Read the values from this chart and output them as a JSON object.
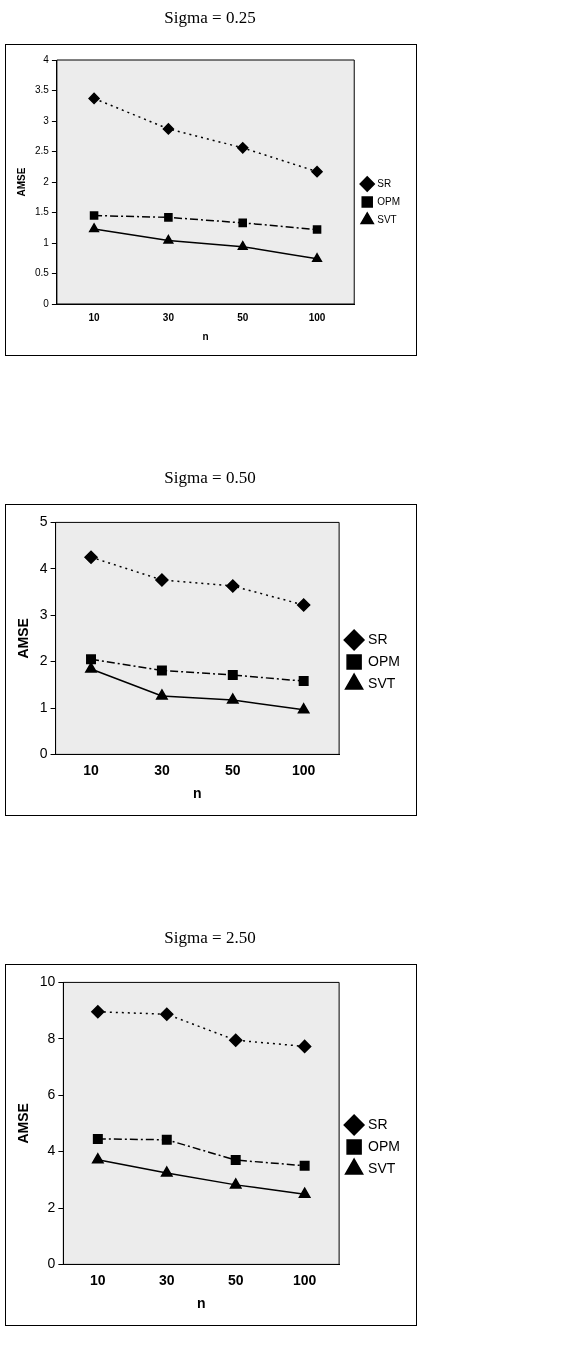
{
  "chart_data": [
    {
      "type": "line",
      "title": "Sigma = 0.25",
      "xlabel": "n",
      "ylabel": "AMSE",
      "categories": [
        "10",
        "30",
        "50",
        "100"
      ],
      "ylim": [
        0,
        4
      ],
      "yticks": [
        0,
        0.5,
        1,
        1.5,
        2,
        2.5,
        3,
        3.5,
        4
      ],
      "grid": false,
      "legend": "right",
      "series": [
        {
          "name": "SR",
          "color": "#000000",
          "marker": "diamond",
          "line_style": "dotted",
          "values": [
            3.37,
            2.87,
            2.56,
            2.17
          ]
        },
        {
          "name": "OPM",
          "color": "#000000",
          "marker": "square",
          "line_style": "dashed",
          "values": [
            1.45,
            1.42,
            1.33,
            1.22
          ]
        },
        {
          "name": "SVT",
          "color": "#000000",
          "marker": "triangle",
          "line_style": "solid",
          "values": [
            1.23,
            1.04,
            0.94,
            0.74
          ]
        }
      ]
    },
    {
      "type": "line",
      "title": "Sigma = 0.50",
      "xlabel": "n",
      "ylabel": "AMSE",
      "categories": [
        "10",
        "30",
        "50",
        "100"
      ],
      "ylim": [
        0,
        5
      ],
      "yticks": [
        0,
        1,
        2,
        3,
        4,
        5
      ],
      "grid": false,
      "legend": "right",
      "series": [
        {
          "name": "SR",
          "color": "#000000",
          "marker": "diamond",
          "line_style": "dotted",
          "values": [
            4.25,
            3.76,
            3.63,
            3.22
          ]
        },
        {
          "name": "OPM",
          "color": "#000000",
          "marker": "square",
          "line_style": "dashed",
          "values": [
            2.05,
            1.81,
            1.71,
            1.58
          ]
        },
        {
          "name": "SVT",
          "color": "#000000",
          "marker": "triangle",
          "line_style": "solid",
          "values": [
            1.84,
            1.26,
            1.17,
            0.96
          ]
        }
      ]
    },
    {
      "type": "line",
      "title": "Sigma = 2.50",
      "xlabel": "n",
      "ylabel": "AMSE",
      "categories": [
        "10",
        "30",
        "50",
        "100"
      ],
      "ylim": [
        0,
        10
      ],
      "yticks": [
        0,
        2,
        4,
        6,
        8,
        10
      ],
      "grid": false,
      "legend": "right",
      "series": [
        {
          "name": "SR",
          "color": "#000000",
          "marker": "diamond",
          "line_style": "dotted",
          "values": [
            8.96,
            8.87,
            7.95,
            7.73
          ]
        },
        {
          "name": "OPM",
          "color": "#000000",
          "marker": "square",
          "line_style": "dashed",
          "values": [
            4.45,
            4.42,
            3.7,
            3.5
          ]
        },
        {
          "name": "SVT",
          "color": "#000000",
          "marker": "triangle",
          "line_style": "solid",
          "values": [
            3.71,
            3.24,
            2.82,
            2.49
          ]
        }
      ]
    }
  ]
}
